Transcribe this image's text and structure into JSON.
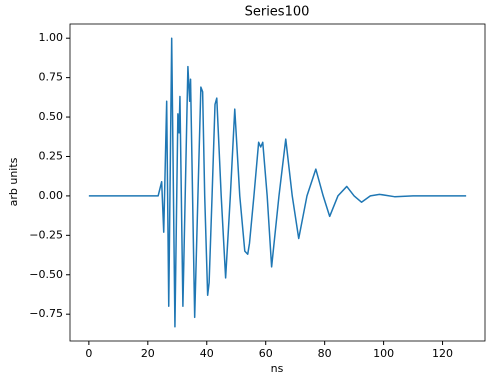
{
  "chart_data": {
    "type": "line",
    "title": "Series100",
    "x_label": "ns",
    "y_label": "arb units",
    "series": [
      {
        "color": "#1f77b4",
        "x": [
          0,
          10,
          20,
          22,
          23.5,
          24.7,
          25.4,
          26.4,
          27.1,
          28.1,
          29.2,
          30.2,
          30.6,
          30.9,
          31.9,
          33.6,
          34.2,
          34.5,
          35.9,
          37.0,
          38.0,
          38.6,
          39.3,
          40.3,
          40.8,
          41.8,
          42.8,
          43.4,
          44.9,
          46.4,
          48.0,
          49.5,
          51.2,
          52.9,
          53.9,
          54.5,
          56.0,
          57.6,
          58.3,
          59.0,
          60.5,
          62.0,
          64.5,
          66.8,
          69.0,
          71.2,
          74.0,
          77.0,
          79.5,
          81.7,
          84.5,
          87.5,
          90.0,
          92.5,
          95.5,
          98.6,
          103.7,
          110,
          120,
          128
        ],
        "values": [
          0,
          0,
          0,
          0,
          0,
          0.09,
          -0.23,
          0.6,
          -0.7,
          1.0,
          -0.83,
          0.52,
          0.4,
          0.63,
          -0.7,
          0.82,
          0.6,
          0.74,
          -0.77,
          0.0,
          0.69,
          0.66,
          0.0,
          -0.63,
          -0.55,
          0.0,
          0.58,
          0.62,
          0.0,
          -0.52,
          0.0,
          0.55,
          0.0,
          -0.35,
          -0.37,
          -0.3,
          0.0,
          0.34,
          0.31,
          0.34,
          0.0,
          -0.45,
          0.0,
          0.36,
          0.0,
          -0.27,
          0.0,
          0.17,
          0.0,
          -0.13,
          0.0,
          0.06,
          0.0,
          -0.04,
          0.0,
          0.01,
          -0.005,
          0,
          0,
          0
        ]
      }
    ],
    "xlim": [
      -6.4,
      134.4
    ],
    "xticks": [
      0,
      20,
      40,
      60,
      80,
      100,
      120
    ],
    "ylim": [
      -0.92,
      1.09
    ],
    "yticks": [
      {
        "value": -0.75,
        "label": "−0.75"
      },
      {
        "value": -0.5,
        "label": "−0.50"
      },
      {
        "value": -0.25,
        "label": "−0.25"
      },
      {
        "value": 0,
        "label": "0.00"
      },
      {
        "value": 0.25,
        "label": "0.25"
      },
      {
        "value": 0.5,
        "label": "0.50"
      },
      {
        "value": 0.75,
        "label": "0.75"
      },
      {
        "value": 1,
        "label": "1.00"
      }
    ]
  }
}
